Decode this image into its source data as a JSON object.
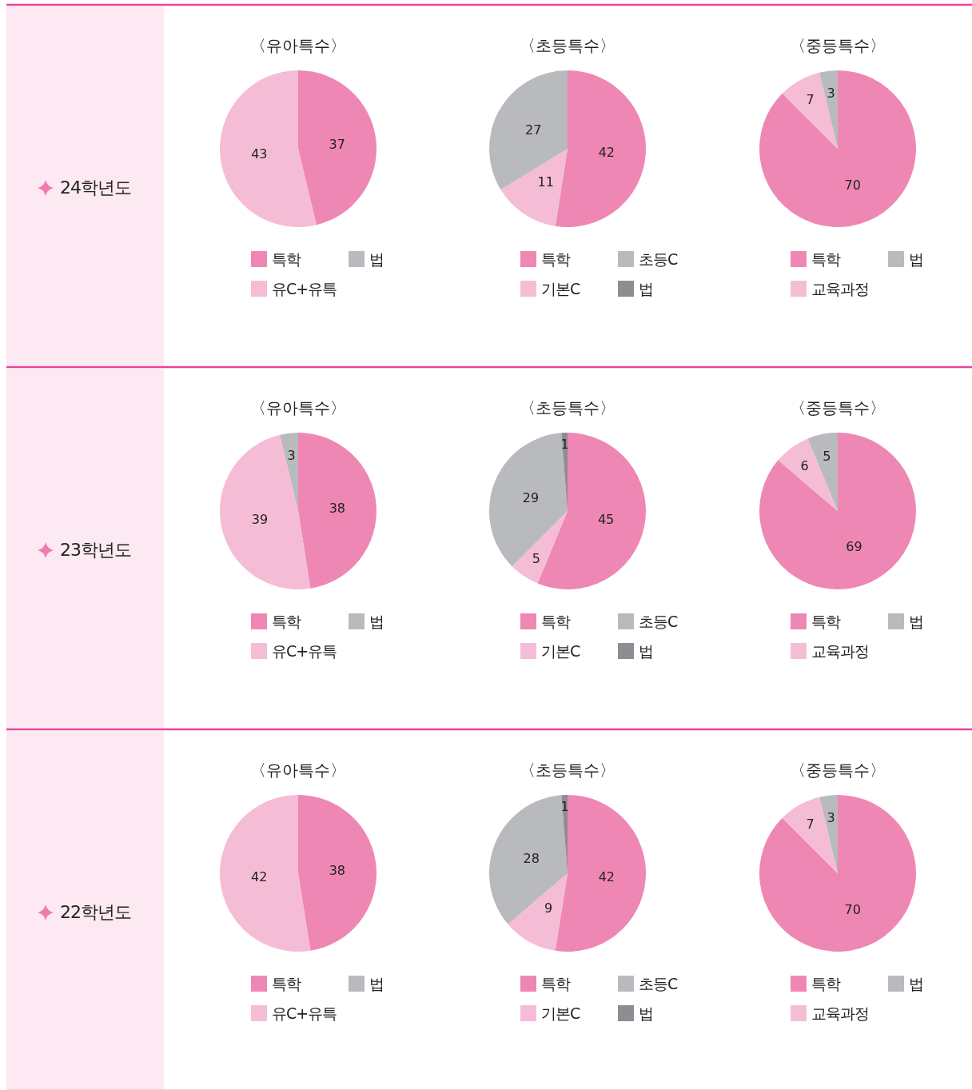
{
  "chart_data": [
    {
      "type": "pie",
      "title": "〈유아특수〉",
      "annotations": [
        "24학년도"
      ],
      "categories": [
        "특학",
        "유C+유특",
        "법"
      ],
      "values": [
        37,
        43,
        0
      ],
      "value_labels": [
        "37",
        "43",
        null
      ],
      "colors": [
        "#ef87b4",
        "#f5bdd5",
        "#b9babe"
      ],
      "legend": "bottom"
    },
    {
      "type": "pie",
      "title": "〈초등특수〉",
      "categories": [
        "특학",
        "기본C",
        "초등C",
        "법"
      ],
      "values": [
        42,
        11,
        27,
        0
      ],
      "value_labels": [
        "42",
        "11",
        "27",
        null
      ],
      "colors": [
        "#ef87b4",
        "#f5bdd5",
        "#b9babe",
        "#8d8e92"
      ],
      "legend": "bottom"
    },
    {
      "type": "pie",
      "title": "〈중등특수〉",
      "categories": [
        "특학",
        "교육과정",
        "법"
      ],
      "values": [
        70,
        7,
        3
      ],
      "data_labels": true,
      "colors": [
        "#ef87b4",
        "#f5bdd5",
        "#b9babe"
      ],
      "legend": "bottom"
    },
    {
      "type": "pie",
      "title": "〈유아특수〉",
      "annotations": [
        "23학년도"
      ],
      "categories": [
        "특학",
        "유C+유특",
        "법"
      ],
      "values": [
        38,
        39,
        3
      ],
      "data_labels": true,
      "colors": [
        "#ef87b4",
        "#f5bdd5",
        "#b9babe"
      ],
      "legend": "bottom"
    },
    {
      "type": "pie",
      "title": "〈초등특수〉",
      "categories": [
        "특학",
        "기본C",
        "초등C",
        "법"
      ],
      "values": [
        45,
        5,
        29,
        1
      ],
      "data_labels": true,
      "colors": [
        "#ef87b4",
        "#f5bdd5",
        "#b9babe",
        "#8d8e92"
      ],
      "legend": "bottom"
    },
    {
      "type": "pie",
      "title": "〈중등특수〉",
      "categories": [
        "특학",
        "교육과정",
        "법"
      ],
      "values": [
        69,
        6,
        5
      ],
      "data_labels": true,
      "colors": [
        "#ef87b4",
        "#f5bdd5",
        "#b9babe"
      ],
      "legend": "bottom"
    },
    {
      "type": "pie",
      "title": "〈유아특수〉",
      "annotations": [
        "22학년도"
      ],
      "categories": [
        "특학",
        "유C+유특",
        "법"
      ],
      "values": [
        38,
        42,
        0
      ],
      "value_labels": [
        "38",
        "42",
        null
      ],
      "colors": [
        "#ef87b4",
        "#f5bdd5",
        "#b9babe"
      ],
      "legend": "bottom"
    },
    {
      "type": "pie",
      "title": "〈초등특수〉",
      "categories": [
        "특학",
        "기본C",
        "초등C",
        "법"
      ],
      "values": [
        42,
        9,
        28,
        1
      ],
      "data_labels": true,
      "colors": [
        "#ef87b4",
        "#f5bdd5",
        "#b9babe",
        "#8d8e92"
      ],
      "legend": "bottom"
    },
    {
      "type": "pie",
      "title": "〈중등특수〉",
      "categories": [
        "특학",
        "교육과정",
        "법"
      ],
      "values": [
        70,
        7,
        3
      ],
      "data_labels": true,
      "colors": [
        "#ef87b4",
        "#f5bdd5",
        "#b9babe"
      ],
      "legend": "bottom"
    }
  ]
}
